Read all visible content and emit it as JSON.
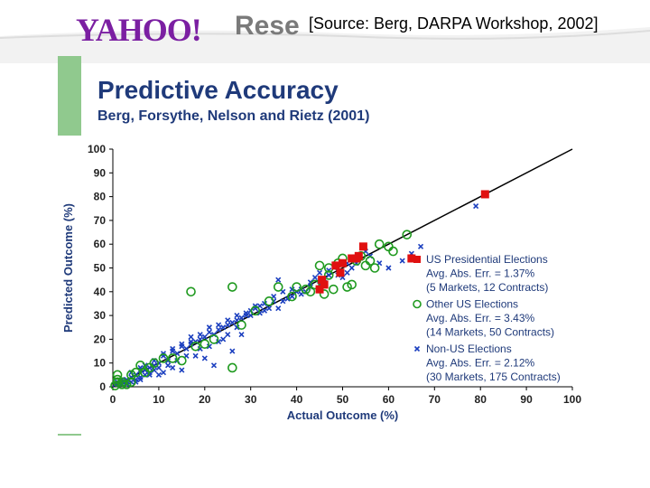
{
  "header": {
    "logo_text": "YAHOO!",
    "logo_tail": "Rese",
    "source": "[Source: Berg, DARPA Workshop, 2002]"
  },
  "slide": {
    "title": "Predictive Accuracy",
    "subtitle": "Berg, Forsythe, Nelson and Rietz (2001)"
  },
  "colors": {
    "presidential": "#e01010",
    "other_us": "#1f9a1f",
    "non_us": "#1b3fbf",
    "fit_line": "#000000"
  },
  "chart_data": {
    "type": "scatter",
    "xlabel": "Actual Outcome (%)",
    "ylabel": "Predicted Outcome (%)",
    "xlim": [
      0,
      100
    ],
    "ylim": [
      0,
      100
    ],
    "xticks": [
      0,
      10,
      20,
      30,
      40,
      50,
      60,
      70,
      80,
      90,
      100
    ],
    "yticks": [
      0,
      10,
      20,
      30,
      40,
      50,
      60,
      70,
      80,
      90,
      100
    ],
    "reference_line": {
      "from": [
        0,
        0
      ],
      "to": [
        100,
        100
      ]
    },
    "series": [
      {
        "name": "US Presidential Elections",
        "stats": [
          "Avg. Abs. Err. = 1.37%",
          "(5 Markets, 12 Contracts)"
        ],
        "marker": "square",
        "points": [
          [
            81,
            81
          ],
          [
            65,
            54
          ],
          [
            54.5,
            59
          ],
          [
            53,
            54
          ],
          [
            50,
            52
          ],
          [
            48.5,
            51
          ],
          [
            49.5,
            48
          ],
          [
            45.5,
            45
          ],
          [
            45,
            41
          ],
          [
            46,
            43
          ],
          [
            52,
            54
          ],
          [
            53.5,
            55
          ]
        ]
      },
      {
        "name": "Other US Elections",
        "stats": [
          "Avg. Abs. Err. = 3.43%",
          "(14 Markets, 50 Contracts)"
        ],
        "marker": "circle",
        "points": [
          [
            17,
            40
          ],
          [
            26,
            42
          ],
          [
            26,
            8
          ],
          [
            64,
            64
          ],
          [
            61,
            57
          ],
          [
            54,
            55
          ],
          [
            50,
            54
          ],
          [
            45,
            51
          ],
          [
            47,
            47
          ],
          [
            51,
            42
          ],
          [
            48,
            41
          ],
          [
            43,
            40
          ],
          [
            46,
            39
          ],
          [
            40,
            42
          ],
          [
            36,
            42
          ],
          [
            1,
            5
          ],
          [
            1,
            2
          ],
          [
            3,
            1
          ],
          [
            4,
            2
          ],
          [
            6,
            9
          ],
          [
            8,
            8
          ],
          [
            5,
            6
          ],
          [
            2,
            1
          ],
          [
            1,
            3
          ],
          [
            0.5,
            0.5
          ],
          [
            13,
            12
          ],
          [
            15,
            11
          ],
          [
            52,
            43
          ],
          [
            57,
            50
          ],
          [
            56,
            53
          ],
          [
            55,
            51
          ],
          [
            53,
            53
          ],
          [
            44,
            43
          ],
          [
            42,
            41
          ],
          [
            39,
            38
          ],
          [
            34,
            36
          ],
          [
            31,
            32
          ],
          [
            28,
            26
          ],
          [
            22,
            20
          ],
          [
            20,
            18
          ],
          [
            18,
            17
          ],
          [
            11,
            12
          ],
          [
            9,
            10
          ],
          [
            7,
            6
          ],
          [
            4,
            5
          ],
          [
            2,
            2
          ],
          [
            47,
            50
          ],
          [
            49,
            52
          ],
          [
            58,
            60
          ],
          [
            60,
            59
          ]
        ]
      },
      {
        "name": "Non-US Elections",
        "stats": [
          "Avg. Abs. Err. = 2.12%",
          "(30 Markets, 175 Contracts)"
        ],
        "marker": "x",
        "points": [
          [
            79,
            76
          ],
          [
            67,
            59
          ],
          [
            65,
            56
          ],
          [
            63,
            53
          ],
          [
            60,
            50
          ],
          [
            58,
            52
          ],
          [
            56,
            55
          ],
          [
            52,
            50
          ],
          [
            51,
            48
          ],
          [
            50,
            46
          ],
          [
            49,
            47
          ],
          [
            47,
            47
          ],
          [
            46,
            44
          ],
          [
            45,
            48
          ],
          [
            44,
            46
          ],
          [
            43,
            42
          ],
          [
            42,
            40
          ],
          [
            41,
            41
          ],
          [
            40,
            40
          ],
          [
            39,
            41
          ],
          [
            38,
            37
          ],
          [
            37,
            40
          ],
          [
            36,
            45
          ],
          [
            35,
            36
          ],
          [
            34,
            33
          ],
          [
            33,
            35
          ],
          [
            32,
            31
          ],
          [
            31,
            33
          ],
          [
            30,
            30
          ],
          [
            29,
            30
          ],
          [
            28,
            29
          ],
          [
            27,
            28
          ],
          [
            26,
            27
          ],
          [
            25,
            26
          ],
          [
            24,
            25
          ],
          [
            23,
            24
          ],
          [
            22,
            22
          ],
          [
            21,
            23
          ],
          [
            20,
            21
          ],
          [
            19,
            20
          ],
          [
            18,
            19
          ],
          [
            17,
            18
          ],
          [
            16,
            16
          ],
          [
            15,
            17
          ],
          [
            14,
            14
          ],
          [
            13,
            15
          ],
          [
            12,
            11
          ],
          [
            11,
            13
          ],
          [
            10,
            10
          ],
          [
            9,
            9
          ],
          [
            8,
            8
          ],
          [
            7,
            7
          ],
          [
            6,
            7
          ],
          [
            5,
            5
          ],
          [
            4,
            4
          ],
          [
            3,
            3
          ],
          [
            2,
            2
          ],
          [
            1,
            1
          ],
          [
            20,
            12
          ],
          [
            22,
            9
          ],
          [
            26,
            15
          ],
          [
            15,
            7
          ],
          [
            18,
            13
          ],
          [
            13,
            8
          ],
          [
            17,
            19
          ],
          [
            21,
            17
          ],
          [
            24,
            20
          ],
          [
            28,
            22
          ],
          [
            32,
            34
          ],
          [
            36,
            33
          ],
          [
            30,
            32
          ],
          [
            27,
            25
          ],
          [
            25,
            22
          ],
          [
            23,
            19
          ],
          [
            19,
            16
          ],
          [
            16,
            13
          ],
          [
            14,
            11
          ],
          [
            12,
            9
          ],
          [
            10,
            8
          ],
          [
            9,
            7
          ],
          [
            8,
            6
          ],
          [
            7,
            5
          ],
          [
            6,
            4
          ],
          [
            5,
            3
          ],
          [
            4,
            2
          ],
          [
            3,
            1
          ],
          [
            2,
            1
          ],
          [
            1,
            2
          ],
          [
            0.5,
            1
          ],
          [
            11,
            6
          ],
          [
            10,
            5
          ],
          [
            8,
            5
          ],
          [
            6,
            3
          ],
          [
            5,
            2
          ],
          [
            3,
            2
          ],
          [
            2,
            3
          ],
          [
            4,
            6
          ],
          [
            6,
            8
          ],
          [
            7,
            9
          ],
          [
            9,
            11
          ],
          [
            11,
            14
          ],
          [
            13,
            16
          ],
          [
            15,
            18
          ],
          [
            17,
            21
          ],
          [
            19,
            22
          ],
          [
            21,
            25
          ],
          [
            23,
            26
          ],
          [
            25,
            28
          ],
          [
            27,
            30
          ],
          [
            29,
            31
          ],
          [
            31,
            34
          ],
          [
            33,
            32
          ],
          [
            35,
            38
          ],
          [
            37,
            36
          ],
          [
            39,
            38
          ],
          [
            41,
            39
          ],
          [
            43,
            44
          ],
          [
            45,
            43
          ],
          [
            47,
            49
          ],
          [
            49,
            50
          ],
          [
            51,
            52
          ],
          [
            53,
            52
          ],
          [
            55,
            57
          ]
        ]
      }
    ]
  }
}
